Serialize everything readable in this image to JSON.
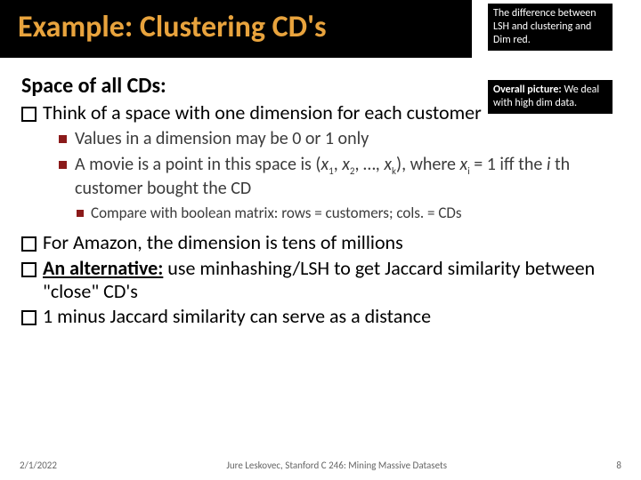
{
  "title": "Example: Clustering CD's",
  "note1": "The difference between LSH and clustering and Dim red.",
  "note2_bold": "Overall picture:",
  "note2_rest": " We deal with high dim data.",
  "heading": "Space of all CDs:",
  "b1a": "Think of a space with one dimension for each customer",
  "s1": "Values in a dimension may be 0 or 1 only",
  "s2a": "A movie is a point in this space is (",
  "s2_x": "x",
  "s2_sub1": "1",
  "s2_c1": ", ",
  "s2_sub2": "2",
  "s2_c2": ", …, ",
  "s2_subk": "k",
  "s2b": "), where ",
  "s2_xi": "x",
  "s2_subi": "i",
  "s2c": " = 1 iff the ",
  "s2_i": "i",
  "s2_th": " th",
  "s2d": " customer bought the CD",
  "s3": "Compare with boolean matrix: rows = customers; cols. = CDs",
  "b2": "For Amazon, the dimension is tens of millions",
  "b3a": "An alternative:",
  "b3b": " use minhashing/LSH to get Jaccard similarity between \"close\" CD's",
  "b4": "1 minus Jaccard similarity can serve as a distance",
  "footer_date": "2/1/2022",
  "footer_center": "Jure Leskovec, Stanford C 246: Mining Massive Datasets",
  "footer_page": "8",
  "colors": {
    "title_bg": "#000000",
    "title_fg": "#e8a33d",
    "square_bullet": "#8b1a1a",
    "body_text": "#000000",
    "sub_text": "#3b3b3b"
  }
}
